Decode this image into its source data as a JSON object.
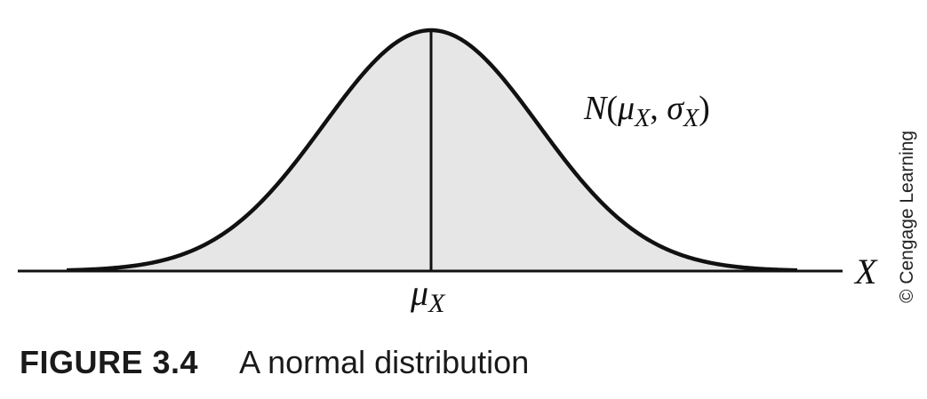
{
  "figure": {
    "curve_label_N": "N",
    "curve_label_open": "(",
    "curve_label_mu": "μ",
    "curve_label_mu_sub": "X",
    "curve_label_comma": ", ",
    "curve_label_sigma": "σ",
    "curve_label_sigma_sub": "X",
    "curve_label_close": ")",
    "axis_label": "X",
    "mean_label": "μ",
    "mean_label_sub": "X",
    "credit": "© Cengage Learning",
    "fill_color": "#e6e6e6",
    "line_color": "#111111"
  },
  "caption": {
    "label": "FIGURE 3.4",
    "text": "A normal distribution"
  }
}
